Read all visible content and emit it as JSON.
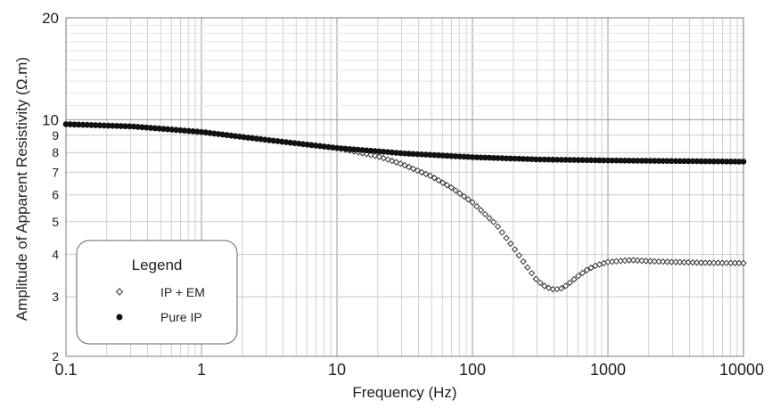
{
  "chart_data": {
    "type": "scatter",
    "title": "",
    "xlabel": "Frequency (Hz)",
    "ylabel": "Amplitude of Apparent Resistivity (Ω.m)",
    "x_scale": "log",
    "y_scale": "log",
    "xlim": [
      0.1,
      10000
    ],
    "ylim": [
      2,
      20
    ],
    "x_ticks": [
      "0.1",
      "1",
      "10",
      "100",
      "1000",
      "10000"
    ],
    "y_ticks": [
      "2",
      "3",
      "4",
      "5",
      "6",
      "7",
      "8",
      "9",
      "10",
      "20"
    ],
    "grid": true,
    "legend": {
      "title": "Legend",
      "placement": "bottom-left",
      "entries": [
        {
          "label": "IP + EM",
          "marker": "open-diamond"
        },
        {
          "label": "Pure IP",
          "marker": "filled-circle"
        }
      ]
    },
    "series": [
      {
        "name": "IP + EM",
        "marker": "open-diamond",
        "color": "#333333",
        "x": [
          0.1,
          0.316,
          1,
          3.16,
          10,
          20,
          30,
          50,
          70,
          100,
          150,
          200,
          250,
          300,
          350,
          400,
          450,
          500,
          600,
          700,
          800,
          1000,
          1500,
          2000,
          3000,
          5000,
          10000
        ],
        "y": [
          9.7,
          9.55,
          9.2,
          8.7,
          8.25,
          7.8,
          7.4,
          6.8,
          6.3,
          5.7,
          4.9,
          4.2,
          3.7,
          3.35,
          3.2,
          3.15,
          3.17,
          3.25,
          3.45,
          3.6,
          3.7,
          3.8,
          3.85,
          3.82,
          3.8,
          3.78,
          3.77
        ]
      },
      {
        "name": "Pure IP",
        "marker": "filled-circle",
        "color": "#111111",
        "x": [
          0.1,
          0.316,
          1,
          3.16,
          10,
          31.6,
          100,
          316,
          1000,
          3160,
          10000
        ],
        "y": [
          9.7,
          9.55,
          9.2,
          8.7,
          8.25,
          7.95,
          7.75,
          7.63,
          7.58,
          7.55,
          7.52
        ]
      }
    ]
  }
}
